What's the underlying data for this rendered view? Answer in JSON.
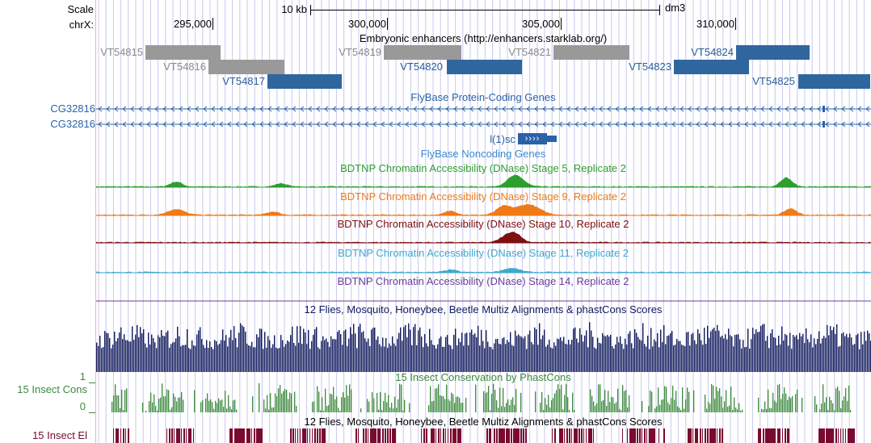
{
  "ruler": {
    "scale_label": "Scale",
    "chrom_label": "chrX:",
    "scale_bar_label": "10 kb",
    "assembly": "dm3",
    "positions": [
      "295,000",
      "300,000",
      "305,000",
      "310,000"
    ]
  },
  "enhancers": {
    "title": "Embryonic enhancers (http://enhancers.starklab.org/)",
    "items": [
      {
        "name": "VT54815",
        "active": false
      },
      {
        "name": "VT54816",
        "active": false
      },
      {
        "name": "VT54817",
        "active": true
      },
      {
        "name": "VT54819",
        "active": false
      },
      {
        "name": "VT54820",
        "active": true
      },
      {
        "name": "VT54821",
        "active": false
      },
      {
        "name": "VT54823",
        "active": true
      },
      {
        "name": "VT54824",
        "active": true
      },
      {
        "name": "VT54825",
        "active": true
      }
    ]
  },
  "genes": {
    "protein_coding_title": "FlyBase Protein-Coding Genes",
    "transcripts": [
      "CG32816",
      "CG32816"
    ],
    "noncoding_gene_label": "l(1)sc",
    "noncoding_title": "FlyBase Noncoding Genes"
  },
  "dnase_tracks": [
    {
      "title": "BDTNP Chromatin Accessibility (DNase) Stage 5, Replicate 2",
      "color": "#2e9e2e"
    },
    {
      "title": "BDTNP Chromatin Accessibility (DNase) Stage 9, Replicate 2",
      "color": "#f07a17"
    },
    {
      "title": "BDTNP Chromatin Accessibility (DNase) Stage 10, Replicate 2",
      "color": "#7e1010"
    },
    {
      "title": "BDTNP Chromatin Accessibility (DNase) Stage 11, Replicate 2",
      "color": "#3ea8cf"
    },
    {
      "title": "BDTNP Chromatin Accessibility (DNase) Stage 14, Replicate 2",
      "color": "#6a3d9a"
    }
  ],
  "multiz": {
    "title": "12 Flies, Mosquito, Honeybee, Beetle Multiz Alignments & phastCons Scores",
    "color": "#101a5c"
  },
  "insect_cons": {
    "side_label": "15 Insect Cons",
    "title": "15 Insect Conservation by PhastCons",
    "y_max": "1",
    "y_min": "0",
    "color": "#3d8a3d"
  },
  "insect_el": {
    "side_label": "15 Insect El",
    "title": "12 Flies, Mosquito, Honeybee, Beetle Multiz Alignments & phastCons Scores",
    "color": "#7a0a2e"
  },
  "colors": {
    "grid": "#c8c8ee",
    "enhancer_active": "#30669e",
    "enhancer_inactive": "#999999",
    "enhancer_label_active": "#2a5d9c",
    "enhancer_label_inactive": "#8a8a8a",
    "gene": "#2a62a8",
    "noncoding_title": "#3b89cf"
  }
}
